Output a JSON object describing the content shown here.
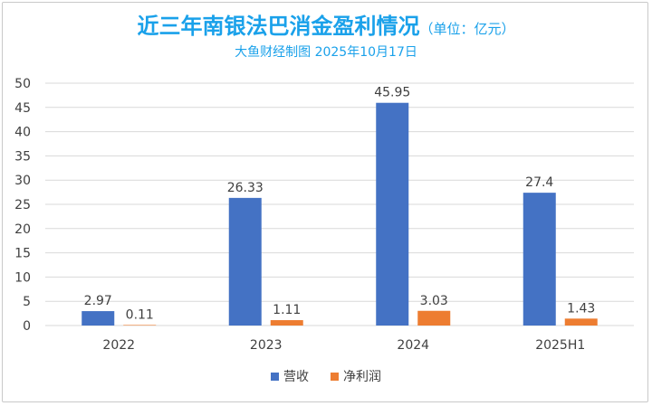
{
  "chart_data": {
    "type": "bar",
    "title": "近三年南银法巴消金盈利情况",
    "title_unit": "（单位：亿元）",
    "subtitle": "大鱼财经制图 2025年10月17日",
    "categories": [
      "2022",
      "2023",
      "2024",
      "2025H1"
    ],
    "series": [
      {
        "name": "营收",
        "color": "#4472c4",
        "values": [
          2.97,
          26.33,
          45.95,
          27.4
        ]
      },
      {
        "name": "净利润",
        "color": "#ed7d31",
        "values": [
          0.11,
          1.11,
          3.03,
          1.43
        ]
      }
    ],
    "value_labels": [
      [
        "2.97",
        "26.33",
        "45.95",
        "27.4"
      ],
      [
        "0.11",
        "1.11",
        "3.03",
        "1.43"
      ]
    ],
    "yticks": [
      "0",
      "5",
      "10",
      "15",
      "20",
      "25",
      "30",
      "35",
      "40",
      "45",
      "50"
    ],
    "ylim": [
      0,
      50
    ],
    "grid": true,
    "legend_position": "bottom"
  }
}
